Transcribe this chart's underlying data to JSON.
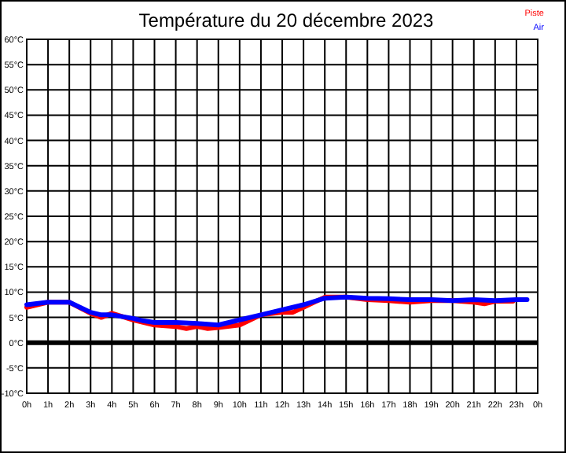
{
  "chart_data": {
    "type": "line",
    "title": "Température du 20 décembre 2023",
    "xlim": [
      "2023-12-20T00:00",
      "2023-12-21T00:00"
    ],
    "xticks": [
      {
        "value": "2023-12-20T00:00",
        "label": "0h"
      },
      {
        "value": "2023-12-20T01:00",
        "label": "1h"
      },
      {
        "value": "2023-12-20T02:00",
        "label": "2h"
      },
      {
        "value": "2023-12-20T03:00",
        "label": "3h"
      },
      {
        "value": "2023-12-20T04:00",
        "label": "4h"
      },
      {
        "value": "2023-12-20T05:00",
        "label": "5h"
      },
      {
        "value": "2023-12-20T06:00",
        "label": "6h"
      },
      {
        "value": "2023-12-20T07:00",
        "label": "7h"
      },
      {
        "value": "2023-12-20T08:00",
        "label": "8h"
      },
      {
        "value": "2023-12-20T09:00",
        "label": "9h"
      },
      {
        "value": "2023-12-20T10:00",
        "label": "10h"
      },
      {
        "value": "2023-12-20T11:00",
        "label": "11h"
      },
      {
        "value": "2023-12-20T12:00",
        "label": "12h"
      },
      {
        "value": "2023-12-20T13:00",
        "label": "13h"
      },
      {
        "value": "2023-12-20T14:00",
        "label": "14h"
      },
      {
        "value": "2023-12-20T15:00",
        "label": "15h"
      },
      {
        "value": "2023-12-20T16:00",
        "label": "16h"
      },
      {
        "value": "2023-12-20T17:00",
        "label": "17h"
      },
      {
        "value": "2023-12-20T18:00",
        "label": "18h"
      },
      {
        "value": "2023-12-20T19:00",
        "label": "19h"
      },
      {
        "value": "2023-12-20T20:00",
        "label": "20h"
      },
      {
        "value": "2023-12-20T21:00",
        "label": "21h"
      },
      {
        "value": "2023-12-20T22:00",
        "label": "22h"
      },
      {
        "value": "2023-12-20T23:00",
        "label": "23h"
      },
      {
        "value": "2023-12-21T00:00",
        "label": "0h"
      }
    ],
    "ylim": [
      -10,
      60
    ],
    "yticks": [
      {
        "value": -10,
        "label": "-10°C"
      },
      {
        "value": -5,
        "label": "-5°C"
      },
      {
        "value": 0,
        "label": "0°C"
      },
      {
        "value": 5,
        "label": "5°C"
      },
      {
        "value": 10,
        "label": "10°C"
      },
      {
        "value": 15,
        "label": "15°C"
      },
      {
        "value": 20,
        "label": "20°C"
      },
      {
        "value": 25,
        "label": "25°C"
      },
      {
        "value": 30,
        "label": "30°C"
      },
      {
        "value": 35,
        "label": "35°C"
      },
      {
        "value": 40,
        "label": "40°C"
      },
      {
        "value": 45,
        "label": "45°C"
      },
      {
        "value": 50,
        "label": "50°C"
      },
      {
        "value": 55,
        "label": "55°C"
      },
      {
        "value": 60,
        "label": "60°C"
      }
    ],
    "grid": true,
    "legend": "top right",
    "line_style": "solid",
    "ref_lines": [
      {
        "axis": "y",
        "value": 0,
        "color": "#000000"
      }
    ],
    "series": [
      {
        "name": "Piste",
        "color": "#ff0000",
        "x": [
          "2023-12-20T00:00",
          "2023-12-20T01:00",
          "2023-12-20T02:00",
          "2023-12-20T03:00",
          "2023-12-20T03:30",
          "2023-12-20T04:00",
          "2023-12-20T05:00",
          "2023-12-20T06:00",
          "2023-12-20T07:00",
          "2023-12-20T07:30",
          "2023-12-20T08:00",
          "2023-12-20T08:30",
          "2023-12-20T09:00",
          "2023-12-20T10:00",
          "2023-12-20T10:30",
          "2023-12-20T11:00",
          "2023-12-20T12:00",
          "2023-12-20T12:30",
          "2023-12-20T13:00",
          "2023-12-20T14:00",
          "2023-12-20T15:00",
          "2023-12-20T16:00",
          "2023-12-20T17:00",
          "2023-12-20T18:00",
          "2023-12-20T19:00",
          "2023-12-20T20:00",
          "2023-12-20T21:00",
          "2023-12-20T21:30",
          "2023-12-20T22:00",
          "2023-12-20T22:50"
        ],
        "values": [
          7,
          8,
          8,
          5.8,
          5,
          5.8,
          4.5,
          3.5,
          3.2,
          2.8,
          3.2,
          2.8,
          3,
          3.5,
          4.5,
          5.5,
          6,
          6,
          7,
          9,
          9,
          8.5,
          8.3,
          8,
          8.3,
          8.3,
          8,
          7.7,
          8.2,
          8.2
        ]
      },
      {
        "name": "Air",
        "color": "#0000ff",
        "x": [
          "2023-12-20T00:00",
          "2023-12-20T01:00",
          "2023-12-20T02:00",
          "2023-12-20T02:30",
          "2023-12-20T03:00",
          "2023-12-20T03:30",
          "2023-12-20T04:00",
          "2023-12-20T05:00",
          "2023-12-20T05:30",
          "2023-12-20T06:00",
          "2023-12-20T07:00",
          "2023-12-20T08:00",
          "2023-12-20T09:00",
          "2023-12-20T10:00",
          "2023-12-20T11:00",
          "2023-12-20T12:00",
          "2023-12-20T13:00",
          "2023-12-20T14:00",
          "2023-12-20T15:00",
          "2023-12-20T16:00",
          "2023-12-20T17:00",
          "2023-12-20T18:00",
          "2023-12-20T19:00",
          "2023-12-20T20:00",
          "2023-12-20T21:00",
          "2023-12-20T22:00",
          "2023-12-20T23:00",
          "2023-12-20T23:30"
        ],
        "values": [
          7.5,
          8,
          8,
          7,
          6,
          5.5,
          5.5,
          4.8,
          4.3,
          4,
          4,
          3.8,
          3.5,
          4.5,
          5.5,
          6.5,
          7.5,
          8.8,
          9,
          8.8,
          8.7,
          8.5,
          8.5,
          8.3,
          8.5,
          8.3,
          8.5,
          8.5
        ]
      }
    ]
  }
}
